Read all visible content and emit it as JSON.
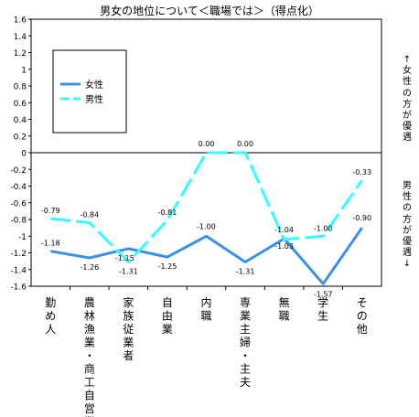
{
  "chart_data": {
    "type": "line",
    "title": "男女の地位について＜職場では＞（得点化）",
    "categories": [
      "勤め人",
      "農林漁業・商工自営業",
      "家族従業者",
      "自由業",
      "内職",
      "専業主婦・主夫",
      "無職",
      "学生",
      "その他"
    ],
    "series": [
      {
        "name": "女性",
        "values": [
          -1.18,
          -1.26,
          -1.15,
          -1.25,
          -1.0,
          -1.31,
          -1.03,
          -1.57,
          -0.9
        ]
      },
      {
        "name": "男性",
        "values": [
          -0.79,
          -0.84,
          -1.31,
          -0.81,
          0.0,
          0.0,
          -1.04,
          -1.0,
          -0.33
        ]
      }
    ],
    "ylim": [
      -1.6,
      1.6
    ],
    "yticks": [
      "1.6",
      "1.4",
      "1.2",
      "1",
      "0.8",
      "0.6",
      "0.4",
      "0.2",
      "0",
      "-0.2",
      "-0.4",
      "-0.6",
      "-0.8",
      "-1",
      "-1.2",
      "-1.4",
      "-1.6"
    ],
    "legend": {
      "position": "upper-left",
      "entries": [
        "女性",
        "男性"
      ]
    },
    "annotations": {
      "upper": "↑女性の方が優遇",
      "lower": "男性の方が優遇↓"
    },
    "colors": {
      "女性": "#3b8fe8",
      "男性": "#33ffff"
    },
    "grid": false
  }
}
